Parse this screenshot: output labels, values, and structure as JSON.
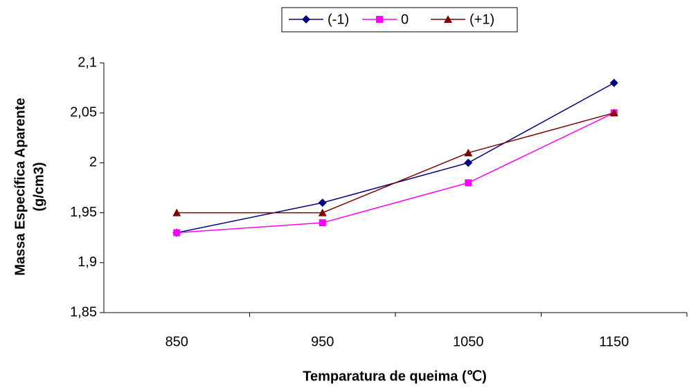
{
  "chart_data": {
    "type": "line",
    "xlabel": "Temparatura de queima (℃)",
    "ylabel": [
      "Massa Específica Aparente",
      "(g/cm3)"
    ],
    "categories": [
      "850",
      "950",
      "1050",
      "1150"
    ],
    "series": [
      {
        "name": "(-1)",
        "color": "#000080",
        "marker": "diamond",
        "values": [
          1.93,
          1.96,
          2.0,
          2.08
        ]
      },
      {
        "name": "0",
        "color": "#ff00ff",
        "marker": "square",
        "values": [
          1.93,
          1.94,
          1.98,
          2.05
        ]
      },
      {
        "name": "(+1)",
        "color": "#800000",
        "marker": "triangle",
        "values": [
          1.95,
          1.95,
          2.01,
          2.05
        ]
      }
    ],
    "ylim": [
      1.85,
      2.1
    ],
    "yticks": [
      {
        "value": 1.85,
        "label": "1,85"
      },
      {
        "value": 1.9,
        "label": "1,9"
      },
      {
        "value": 1.95,
        "label": "1,95"
      },
      2,
      {
        "value": 2.05,
        "label": "2,05"
      },
      {
        "value": 2.1,
        "label": "2,1"
      }
    ],
    "grid": false,
    "legend": "top"
  }
}
